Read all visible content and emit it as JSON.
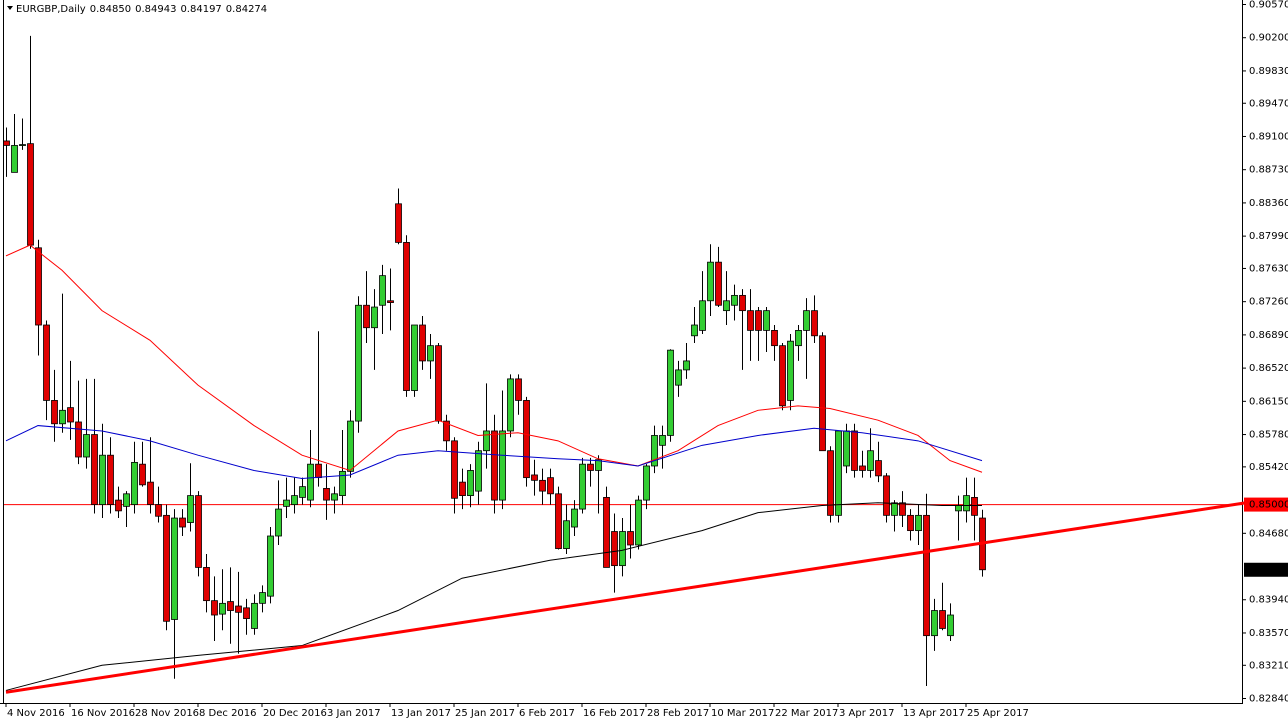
{
  "chart_data": {
    "type": "candlestick",
    "symbol": "EURGBP,Daily",
    "header": [
      "0.84850",
      "0.84943",
      "0.84197",
      "0.84274"
    ],
    "up_color": "#32cd32",
    "down_color": "#e00000",
    "ylim": [
      0.8279,
      0.9062
    ],
    "yticks": [
      {
        "value": 0.9057,
        "label": "0.90570"
      },
      {
        "value": 0.902,
        "label": "0.90200"
      },
      {
        "value": 0.8983,
        "label": "0.89830"
      },
      {
        "value": 0.8947,
        "label": "0.89470"
      },
      {
        "value": 0.891,
        "label": "0.89100"
      },
      {
        "value": 0.8873,
        "label": "0.88730"
      },
      {
        "value": 0.8836,
        "label": "0.88360"
      },
      {
        "value": 0.8799,
        "label": "0.87990"
      },
      {
        "value": 0.8763,
        "label": "0.87630"
      },
      {
        "value": 0.8726,
        "label": "0.87260"
      },
      {
        "value": 0.8689,
        "label": "0.86890"
      },
      {
        "value": 0.8652,
        "label": "0.86520"
      },
      {
        "value": 0.8615,
        "label": "0.86150"
      },
      {
        "value": 0.8578,
        "label": "0.85780"
      },
      {
        "value": 0.8542,
        "label": "0.85420"
      },
      {
        "value": 0.8468,
        "label": "0.84680"
      },
      {
        "value": 0.8394,
        "label": "0.83940"
      },
      {
        "value": 0.8357,
        "label": "0.83570"
      },
      {
        "value": 0.8321,
        "label": "0.83210"
      },
      {
        "value": 0.8284,
        "label": "0.82840"
      }
    ],
    "categories": [
      "4 Nov 2016",
      null,
      null,
      null,
      null,
      null,
      null,
      null,
      "16 Nov 2016",
      null,
      null,
      null,
      null,
      null,
      null,
      null,
      "28 Nov 2016",
      null,
      null,
      null,
      null,
      null,
      null,
      null,
      "8 Dec 2016",
      null,
      null,
      null,
      null,
      null,
      null,
      null,
      "20 Dec 2016",
      null,
      null,
      null,
      null,
      null,
      null,
      null,
      "3 Jan 2017",
      null,
      null,
      null,
      null,
      null,
      null,
      null,
      "13 Jan 2017",
      null,
      null,
      null,
      null,
      null,
      null,
      null,
      "25 Jan 2017",
      null,
      null,
      null,
      null,
      null,
      null,
      null,
      "6 Feb 2017",
      null,
      null,
      null,
      null,
      null,
      null,
      null,
      "16 Feb 2017",
      null,
      null,
      null,
      null,
      null,
      null,
      null,
      "28 Feb 2017",
      null,
      null,
      null,
      null,
      null,
      null,
      null,
      "10 Mar 2017",
      null,
      null,
      null,
      null,
      null,
      null,
      null,
      "22 Mar 2017",
      null,
      null,
      null,
      null,
      null,
      null,
      null,
      "3 Apr 2017",
      null,
      null,
      null,
      null,
      null,
      null,
      null,
      "13 Apr 2017",
      null,
      null,
      null,
      null,
      null,
      null,
      null,
      "25 Apr 2017",
      null,
      null
    ],
    "ohlc": [
      [
        0.8905,
        0.892,
        0.8865,
        0.89
      ],
      [
        0.887,
        0.8935,
        0.887,
        0.89
      ],
      [
        0.89,
        0.893,
        0.8895,
        0.8901
      ],
      [
        0.8902,
        0.9022,
        0.8785,
        0.8789
      ],
      [
        0.8786,
        0.8795,
        0.8666,
        0.87
      ],
      [
        0.87,
        0.8705,
        0.8594,
        0.8616
      ],
      [
        0.8616,
        0.865,
        0.857,
        0.859
      ],
      [
        0.859,
        0.8735,
        0.858,
        0.8605
      ],
      [
        0.8608,
        0.866,
        0.8572,
        0.8592
      ],
      [
        0.8592,
        0.8638,
        0.8545,
        0.8553
      ],
      [
        0.8553,
        0.864,
        0.854,
        0.8578
      ],
      [
        0.8578,
        0.864,
        0.849,
        0.85
      ],
      [
        0.85,
        0.859,
        0.8485,
        0.8555
      ],
      [
        0.8555,
        0.8575,
        0.849,
        0.85
      ],
      [
        0.8505,
        0.852,
        0.8485,
        0.8493
      ],
      [
        0.8498,
        0.8515,
        0.8475,
        0.8512
      ],
      [
        0.85,
        0.857,
        0.849,
        0.8547
      ],
      [
        0.8545,
        0.857,
        0.852,
        0.8522
      ],
      [
        0.8525,
        0.8575,
        0.849,
        0.85
      ],
      [
        0.85,
        0.852,
        0.848,
        0.8487
      ],
      [
        0.8488,
        0.85,
        0.836,
        0.837
      ],
      [
        0.8372,
        0.8495,
        0.8306,
        0.8485
      ],
      [
        0.8485,
        0.8495,
        0.8465,
        0.8475
      ],
      [
        0.848,
        0.8546,
        0.847,
        0.851
      ],
      [
        0.851,
        0.8515,
        0.842,
        0.843
      ],
      [
        0.843,
        0.8445,
        0.838,
        0.8393
      ],
      [
        0.8393,
        0.842,
        0.8348,
        0.8377
      ],
      [
        0.8378,
        0.8428,
        0.836,
        0.839
      ],
      [
        0.8392,
        0.843,
        0.8345,
        0.8382
      ],
      [
        0.8387,
        0.8425,
        0.8334,
        0.838
      ],
      [
        0.8385,
        0.8395,
        0.8355,
        0.8373
      ],
      [
        0.8362,
        0.84,
        0.8355,
        0.839
      ],
      [
        0.839,
        0.841,
        0.838,
        0.8402
      ],
      [
        0.8398,
        0.8475,
        0.839,
        0.8465
      ],
      [
        0.8465,
        0.8527,
        0.8455,
        0.8495
      ],
      [
        0.8498,
        0.853,
        0.8485,
        0.8505
      ],
      [
        0.85,
        0.853,
        0.849,
        0.851
      ],
      [
        0.8508,
        0.853,
        0.85,
        0.852
      ],
      [
        0.8505,
        0.8583,
        0.8497,
        0.8545
      ],
      [
        0.8545,
        0.8693,
        0.852,
        0.853
      ],
      [
        0.8518,
        0.8545,
        0.8483,
        0.8505
      ],
      [
        0.8505,
        0.852,
        0.849,
        0.8512
      ],
      [
        0.851,
        0.8583,
        0.85,
        0.8537
      ],
      [
        0.8537,
        0.8605,
        0.853,
        0.8593
      ],
      [
        0.8593,
        0.8732,
        0.858,
        0.8722
      ],
      [
        0.8722,
        0.876,
        0.868,
        0.8697
      ],
      [
        0.8697,
        0.874,
        0.865,
        0.872
      ],
      [
        0.8722,
        0.8767,
        0.869,
        0.8755
      ],
      [
        0.8727,
        0.8763,
        0.8694,
        0.8725
      ],
      [
        0.8835,
        0.8852,
        0.879,
        0.8792
      ],
      [
        0.8792,
        0.88,
        0.862,
        0.8627
      ],
      [
        0.8627,
        0.87,
        0.862,
        0.87
      ],
      [
        0.87,
        0.871,
        0.865,
        0.866
      ],
      [
        0.866,
        0.869,
        0.864,
        0.8677
      ],
      [
        0.8677,
        0.868,
        0.859,
        0.8593
      ],
      [
        0.8593,
        0.86,
        0.856,
        0.8571
      ],
      [
        0.8571,
        0.8575,
        0.849,
        0.8507
      ],
      [
        0.8525,
        0.854,
        0.8495,
        0.851
      ],
      [
        0.851,
        0.8545,
        0.8497,
        0.8538
      ],
      [
        0.8515,
        0.857,
        0.85,
        0.856
      ],
      [
        0.856,
        0.8635,
        0.854,
        0.8582
      ],
      [
        0.8582,
        0.86,
        0.849,
        0.8505
      ],
      [
        0.8505,
        0.8627,
        0.8495,
        0.8582
      ],
      [
        0.8582,
        0.8645,
        0.8575,
        0.864
      ],
      [
        0.864,
        0.8645,
        0.86,
        0.8616
      ],
      [
        0.8616,
        0.862,
        0.852,
        0.853
      ],
      [
        0.8533,
        0.855,
        0.851,
        0.8527
      ],
      [
        0.8527,
        0.854,
        0.85,
        0.8515
      ],
      [
        0.853,
        0.854,
        0.85,
        0.8512
      ],
      [
        0.8512,
        0.852,
        0.845,
        0.8451
      ],
      [
        0.8451,
        0.85,
        0.8445,
        0.8482
      ],
      [
        0.8475,
        0.8505,
        0.8465,
        0.8495
      ],
      [
        0.8495,
        0.8552,
        0.849,
        0.8545
      ],
      [
        0.8545,
        0.8552,
        0.852,
        0.8538
      ],
      [
        0.8538,
        0.8555,
        0.849,
        0.855
      ],
      [
        0.8508,
        0.852,
        0.843,
        0.843
      ],
      [
        0.847,
        0.849,
        0.8402,
        0.8432
      ],
      [
        0.8432,
        0.8485,
        0.842,
        0.847
      ],
      [
        0.847,
        0.85,
        0.844,
        0.8455
      ],
      [
        0.8455,
        0.851,
        0.845,
        0.8505
      ],
      [
        0.8505,
        0.8545,
        0.8495,
        0.8543
      ],
      [
        0.8543,
        0.8588,
        0.8535,
        0.8577
      ],
      [
        0.8566,
        0.8588,
        0.854,
        0.8577
      ],
      [
        0.8577,
        0.8673,
        0.857,
        0.8672
      ],
      [
        0.8633,
        0.866,
        0.862,
        0.865
      ],
      [
        0.865,
        0.868,
        0.864,
        0.866
      ],
      [
        0.8688,
        0.872,
        0.868,
        0.87
      ],
      [
        0.8694,
        0.876,
        0.869,
        0.8727
      ],
      [
        0.8727,
        0.879,
        0.871,
        0.877
      ],
      [
        0.877,
        0.8787,
        0.872,
        0.8722
      ],
      [
        0.8716,
        0.876,
        0.87,
        0.8727
      ],
      [
        0.8722,
        0.8745,
        0.8705,
        0.8733
      ],
      [
        0.8733,
        0.874,
        0.865,
        0.8716
      ],
      [
        0.8716,
        0.874,
        0.866,
        0.8694
      ],
      [
        0.8716,
        0.872,
        0.866,
        0.8694
      ],
      [
        0.8694,
        0.872,
        0.867,
        0.8716
      ],
      [
        0.8694,
        0.87,
        0.866,
        0.8677
      ],
      [
        0.8677,
        0.868,
        0.8605,
        0.861
      ],
      [
        0.8616,
        0.869,
        0.8605,
        0.8682
      ],
      [
        0.8677,
        0.87,
        0.866,
        0.8694
      ],
      [
        0.8694,
        0.873,
        0.864,
        0.8716
      ],
      [
        0.8716,
        0.8733,
        0.868,
        0.8688
      ],
      [
        0.8688,
        0.8692,
        0.856,
        0.856
      ],
      [
        0.856,
        0.8565,
        0.848,
        0.8488
      ],
      [
        0.8488,
        0.858,
        0.848,
        0.8582
      ],
      [
        0.8543,
        0.859,
        0.8535,
        0.8582
      ],
      [
        0.8582,
        0.859,
        0.853,
        0.8538
      ],
      [
        0.8543,
        0.856,
        0.853,
        0.8538
      ],
      [
        0.8538,
        0.8585,
        0.853,
        0.856
      ],
      [
        0.8549,
        0.857,
        0.8525,
        0.8532
      ],
      [
        0.8532,
        0.8535,
        0.848,
        0.8488
      ],
      [
        0.8488,
        0.8505,
        0.847,
        0.8502
      ],
      [
        0.8502,
        0.8515,
        0.8475,
        0.8488
      ],
      [
        0.8488,
        0.8495,
        0.846,
        0.8471
      ],
      [
        0.8471,
        0.85,
        0.8455,
        0.8488
      ],
      [
        0.8488,
        0.8512,
        0.8298,
        0.8354
      ],
      [
        0.8354,
        0.8395,
        0.8337,
        0.8382
      ],
      [
        0.8382,
        0.8413,
        0.836,
        0.8362
      ],
      [
        0.8354,
        0.839,
        0.8348,
        0.8377
      ],
      [
        0.8493,
        0.851,
        0.846,
        0.8499
      ],
      [
        0.8493,
        0.853,
        0.848,
        0.851
      ],
      [
        0.8508,
        0.853,
        0.846,
        0.8488
      ],
      [
        0.8485,
        0.84943,
        0.84197,
        0.84274
      ]
    ],
    "overlays": [
      {
        "color": "#ff0000",
        "line_width": 1,
        "x": [
          0,
          3,
          7,
          12,
          18,
          24,
          31,
          37,
          43,
          49,
          54,
          59,
          64,
          69,
          74,
          79,
          84,
          89,
          94,
          99,
          103,
          109,
          114,
          118,
          122
        ],
        "values": [
          0.8777,
          0.8789,
          0.8761,
          0.8716,
          0.8683,
          0.8633,
          0.8588,
          0.8555,
          0.8538,
          0.8582,
          0.8594,
          0.8577,
          0.858,
          0.8571,
          0.8551,
          0.8543,
          0.856,
          0.8588,
          0.8605,
          0.861,
          0.8607,
          0.8594,
          0.8577,
          0.8549,
          0.8536
        ]
      },
      {
        "color": "#0000cc",
        "line_width": 1,
        "x": [
          0,
          4,
          12,
          18,
          24,
          31,
          37,
          43,
          49,
          54,
          62,
          69,
          74,
          79,
          87,
          94,
          101,
          107,
          114,
          122
        ],
        "values": [
          0.8571,
          0.8588,
          0.8582,
          0.8571,
          0.8555,
          0.8538,
          0.8529,
          0.8533,
          0.8555,
          0.856,
          0.8555,
          0.8551,
          0.8549,
          0.8543,
          0.8566,
          0.8577,
          0.8585,
          0.858,
          0.8571,
          0.8549
        ]
      },
      {
        "color": "#000000",
        "line_width": 1,
        "x": [
          0,
          12,
          24,
          37,
          49,
          57,
          68,
          77,
          87,
          94,
          102,
          109,
          117,
          122
        ],
        "values": [
          0.8293,
          0.8321,
          0.8332,
          0.8343,
          0.8382,
          0.8418,
          0.8438,
          0.8449,
          0.8471,
          0.8491,
          0.8499,
          0.8502,
          0.8499,
          0.8499
        ]
      },
      {
        "color": "#ff0000",
        "line_width": 3,
        "x": [
          0,
          155
        ],
        "values": [
          0.8291,
          0.8502
        ]
      }
    ],
    "hline": {
      "value": 0.85,
      "label": "0.85000",
      "color": "#ff0000"
    },
    "last_price": {
      "value": 0.84274,
      "label": "0.84274"
    }
  }
}
